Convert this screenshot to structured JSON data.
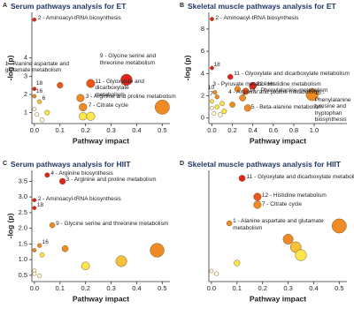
{
  "chart_data": [
    {
      "type": "scatter",
      "panel": "A",
      "title": "Serum pathways analysis for ET",
      "xlabel": "Pathway impact",
      "ylabel": "-log (p)",
      "xlim": [
        -0.01,
        0.53
      ],
      "ylim": [
        0.4,
        6.5
      ],
      "xticks": [
        {
          "value": 0,
          "label": "0.0"
        },
        0.1,
        0.2,
        0.3,
        0.4,
        0.5
      ],
      "yticks": [
        1,
        2,
        3,
        4
      ],
      "x": [
        0.0,
        0.1,
        0.36,
        0.22,
        0.0,
        0.0,
        0.02,
        0.18,
        0.19,
        0.0,
        0.01,
        0.05,
        0.19,
        0.22,
        0.5,
        0.03
      ],
      "values": [
        6.1,
        2.5,
        2.8,
        2.6,
        2.3,
        1.9,
        1.6,
        1.8,
        1.3,
        1.2,
        0.9,
        1.0,
        0.8,
        0.8,
        1.3,
        0.6
      ],
      "colors": [
        "#e3231b",
        "#ea561c",
        "#e3231b",
        "#ea561c",
        "#e3231b",
        "#f08a24",
        "#f7c23a",
        "#f08a24",
        "#f08a24",
        "#fffbe0",
        "#fffbe0",
        "#fde74c",
        "#fde74c",
        "#fde74c",
        "#f08a24",
        "#fffbe0"
      ],
      "point_labels": [
        "2 - Aminoacyl-tRNA biosynthesis",
        "1 - Alanine aspartate and glutamate metabolism",
        "9 - Glycine serine and threonine metabolism",
        "11 - Glyoxylate and dicarboxylate metabolism",
        "18",
        "16",
        "6",
        "3 - Arginine and proline metabolism",
        "7 - Citrate cycle",
        null,
        null,
        null,
        null,
        null,
        null,
        null
      ]
    },
    {
      "type": "scatter",
      "panel": "B",
      "title": "Skeletal muscle pathways analysis for ET",
      "xlabel": "Pathway impact",
      "ylabel": "-log (p)",
      "xlim": [
        -0.03,
        1.32
      ],
      "ylim": [
        -0.5,
        9.5
      ],
      "xticks": [
        {
          "value": 0,
          "label": "0.0"
        },
        0.2,
        0.4,
        0.6,
        0.8,
        {
          "value": 1,
          "label": "1.0"
        }
      ],
      "yticks": [
        0,
        2,
        4,
        6,
        8
      ],
      "x": [
        0.0,
        0.0,
        0.18,
        0.4,
        0.33,
        0.25,
        0.3,
        0.98,
        0.35,
        0.03,
        0.05,
        0.0,
        0.02,
        0.05,
        0.1,
        0.08,
        0.2,
        0.12,
        0.0
      ],
      "values": [
        8.9,
        4.5,
        3.7,
        2.9,
        2.4,
        2.6,
        1.8,
        2.1,
        0.9,
        2.3,
        1.9,
        0.9,
        0.4,
        1.0,
        1.3,
        0.3,
        1.2,
        0.6,
        1.5
      ],
      "colors": [
        "#e3231b",
        "#e3231b",
        "#e3231b",
        "#e3231b",
        "#ea561c",
        "#f08a24",
        "#f08a24",
        "#f08a24",
        "#f08a24",
        "#f08a24",
        "#f08a24",
        "#fffbe0",
        "#fffbe0",
        "#fde74c",
        "#fde74c",
        "#fffbe0",
        "#f08a24",
        "#fde74c",
        "#fde74c"
      ],
      "point_labels": [
        "2 - Aminoacyl-tRNA biosynthesis",
        "18",
        "11 - Glyoxylate and dicarboxylate metabolism",
        "12 - Histidine metabolism",
        "14 - Phenylalanine metabolism",
        "3 - Pyruvate metabolism",
        "4 - Arginine and proline metabolism",
        "15 - Phenylalanine tyrosine and tryptophan biosynthesis",
        "5 - Beta-alanine metabolism",
        "10",
        "7",
        null,
        null,
        null,
        null,
        null,
        null,
        null,
        null
      ]
    },
    {
      "type": "scatter",
      "panel": "C",
      "title": "Serum pathways analysis for HIIT",
      "xlabel": "Pathway impact",
      "ylabel": "-log (p)",
      "xlim": [
        -0.01,
        0.53
      ],
      "ylim": [
        0.3,
        3.85
      ],
      "xticks": [
        {
          "value": 0,
          "label": "0.0"
        },
        0.1,
        0.2,
        0.3,
        0.4,
        0.5
      ],
      "yticks": [
        {
          "value": 0.5,
          "label": "0.5"
        },
        {
          "value": 1,
          "label": "1.0"
        },
        {
          "value": 1.5,
          "label": "1.5"
        },
        {
          "value": 2,
          "label": "2.0"
        },
        {
          "value": 2.5,
          "label": "2.5"
        },
        {
          "value": 3,
          "label": "3.0"
        },
        {
          "value": 3.5,
          "label": "3.5"
        }
      ],
      "x": [
        0.05,
        0.11,
        0.0,
        0.0,
        0.07,
        0.02,
        0.0,
        0.12,
        0.48,
        0.34,
        0.2,
        0.0,
        0.0,
        0.02,
        0.03
      ],
      "values": [
        3.7,
        3.5,
        2.9,
        2.65,
        2.1,
        1.45,
        1.3,
        1.35,
        1.3,
        0.95,
        0.8,
        0.65,
        0.55,
        0.48,
        1.15
      ],
      "colors": [
        "#e3231b",
        "#e3231b",
        "#e3231b",
        "#e3231b",
        "#f08a24",
        "#f08a24",
        "#f08a24",
        "#f08a24",
        "#f08a24",
        "#f7c23a",
        "#fde74c",
        "#fffbe0",
        "#fffbe0",
        "#fffbe0",
        "#fde74c"
      ],
      "point_labels": [
        "4 - Arginine biosynthesis",
        "3 - Arginine and proline metabolism",
        "2 - Aminoacyl-tRNA biosynthesis",
        "18",
        "9 - Glycine serine and threonine metabolism",
        "16",
        null,
        null,
        null,
        null,
        null,
        null,
        null,
        null,
        null
      ]
    },
    {
      "type": "scatter",
      "panel": "D",
      "title": "Skeletal muscle pathways analysis for HIIT",
      "xlabel": "Pathway impact",
      "xlim": [
        -0.01,
        0.53
      ],
      "ylim": [
        0.35,
        2.45
      ],
      "xticks": [
        {
          "value": 0,
          "label": "0.0"
        },
        0.1,
        0.2,
        0.3,
        0.4,
        0.5
      ],
      "x": [
        0.12,
        0.18,
        0.18,
        0.07,
        0.5,
        0.3,
        0.33,
        0.35,
        0.1,
        0.0,
        0.02
      ],
      "values": [
        2.3,
        1.95,
        1.8,
        1.45,
        1.4,
        1.15,
        1.0,
        0.85,
        0.7,
        0.55,
        0.5
      ],
      "colors": [
        "#e3231b",
        "#ea561c",
        "#f08a24",
        "#f08a24",
        "#f08a24",
        "#f08a24",
        "#f7c23a",
        "#fde74c",
        "#fde74c",
        "#fffbe0",
        "#fffbe0"
      ],
      "point_labels": [
        "11 - Glyoxylate and dicarboxylate metabolism",
        "12 - Histidine metabolism",
        "7 - Citrate cycle",
        "1 - Alanine aspartate and glutamate metabolism",
        null,
        null,
        null,
        null,
        null,
        null,
        null
      ]
    }
  ]
}
